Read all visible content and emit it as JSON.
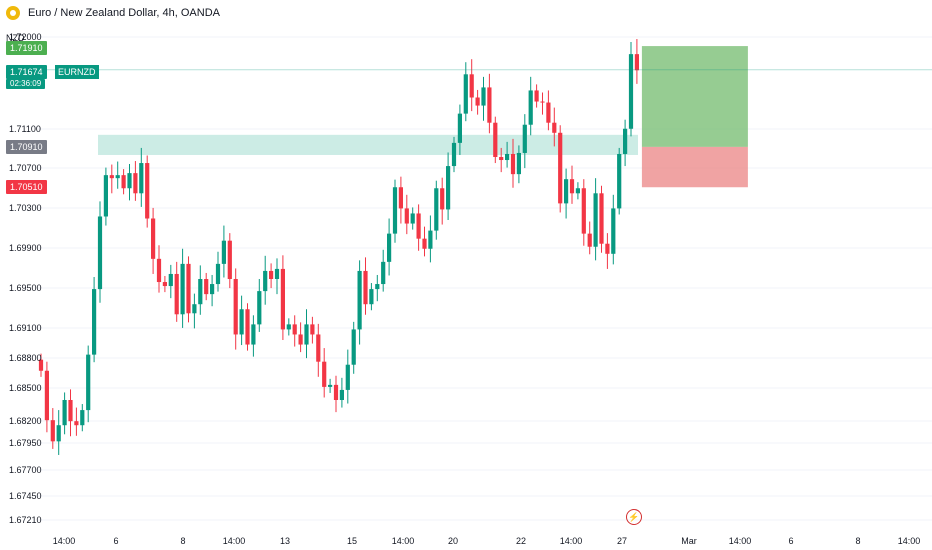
{
  "header": {
    "title": "Euro / New Zealand Dollar, 4h, OANDA",
    "currency": "NZD"
  },
  "price_tags": {
    "target": "1.71910",
    "current": "1.71674",
    "countdown": "02:36:09",
    "symbol": "EURNZD",
    "zone": "1.70910",
    "stop": "1.70510"
  },
  "colors": {
    "up": "#089981",
    "down": "#f23645",
    "target_fill": "#7cbf77",
    "stop_fill": "#ec8c8c",
    "zone_fill": "#b7e4da",
    "grid": "#f0f3fa"
  },
  "icons": {
    "lightning": "lightning-icon"
  },
  "chart_data": {
    "type": "candlestick",
    "title": "Euro / New Zealand Dollar, 4h, OANDA",
    "ylabel": "NZD",
    "y_ticks": [
      "1.72000",
      "1.71910",
      "1.71674",
      "1.71100",
      "1.70910",
      "1.70700",
      "1.70510",
      "1.70300",
      "1.69900",
      "1.69500",
      "1.69100",
      "1.68800",
      "1.68500",
      "1.68200",
      "1.67950",
      "1.67700",
      "1.67450",
      "1.67210"
    ],
    "x_tick_labels": [
      "14:00",
      "6",
      "8",
      "14:00",
      "13",
      "15",
      "14:00",
      "20",
      "22",
      "14:00",
      "27",
      "Mar",
      "14:00",
      "6",
      "8",
      "14:00"
    ],
    "grid": true,
    "candle_count": 102,
    "start_open": 1.688,
    "closes": [
      1.6869,
      1.682,
      1.6799,
      1.6815,
      1.684,
      1.6819,
      1.6815,
      1.683,
      1.6885,
      1.695,
      1.7022,
      1.7063,
      1.706,
      1.7063,
      1.705,
      1.7065,
      1.7045,
      1.7075,
      1.702,
      1.698,
      1.6957,
      1.6953,
      1.6965,
      1.6925,
      1.6975,
      1.6926,
      1.6935,
      1.696,
      1.6945,
      1.6955,
      1.6975,
      1.6998,
      1.696,
      1.6905,
      1.693,
      1.6895,
      1.6915,
      1.6948,
      1.6968,
      1.696,
      1.697,
      1.691,
      1.6915,
      1.6905,
      1.6895,
      1.6915,
      1.6905,
      1.6878,
      1.6853,
      1.6855,
      1.684,
      1.685,
      1.6875,
      1.691,
      1.6968,
      1.6935,
      1.695,
      1.6955,
      1.6977,
      1.7005,
      1.7051,
      1.703,
      1.7015,
      1.7025,
      1.7,
      1.699,
      1.7008,
      1.705,
      1.7029,
      1.7072,
      1.7095,
      1.7124,
      1.7163,
      1.714,
      1.7132,
      1.715,
      1.7115,
      1.7081,
      1.7078,
      1.7084,
      1.7064,
      1.7085,
      1.7113,
      1.7147,
      1.7136,
      1.7135,
      1.7115,
      1.7105,
      1.7035,
      1.7059,
      1.7045,
      1.705,
      1.7005,
      1.6992,
      1.7045,
      1.6995,
      1.6985,
      1.703,
      1.7084,
      1.7109,
      1.7183,
      1.7167
    ],
    "current_price": 1.71674,
    "countdown": "02:36:09",
    "zone": {
      "low": 1.7083,
      "high": 1.7103
    },
    "position": {
      "entry": 1.7091,
      "target": 1.7191,
      "stop": 1.7051
    }
  }
}
